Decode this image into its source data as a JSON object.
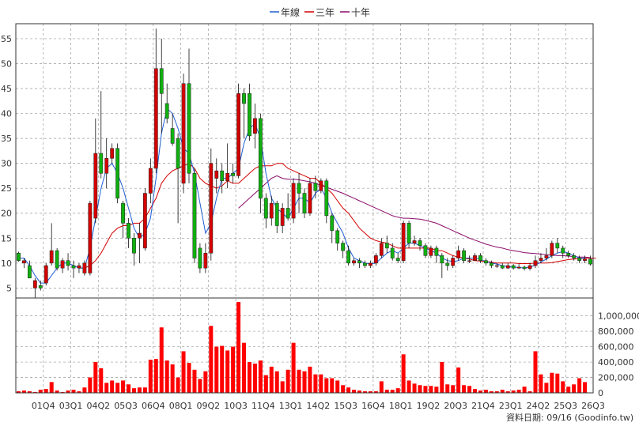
{
  "chart_data": {
    "type": "candlestick",
    "legend": [
      {
        "name": "年線",
        "color": "#1f5fd6"
      },
      {
        "name": "三年",
        "color": "#d40000"
      },
      {
        "name": "十年",
        "color": "#8a0a6a"
      }
    ],
    "price_axis": {
      "ticks": [
        5,
        10,
        15,
        20,
        25,
        30,
        35,
        40,
        45,
        50,
        55
      ],
      "ylim": [
        3,
        58
      ]
    },
    "volume_axis": {
      "ticks": [
        0,
        200000,
        400000,
        600000,
        800000,
        1000000
      ],
      "tick_labels": [
        "0",
        "200,000",
        "400,000",
        "600,000",
        "800,000",
        "1,000,000"
      ],
      "ylim": [
        0,
        1150000
      ]
    },
    "x_ticks": [
      "01Q4",
      "03Q1",
      "04Q2",
      "05Q3",
      "06Q4",
      "08Q1",
      "09Q2",
      "10Q3",
      "11Q4",
      "13Q1",
      "14Q2",
      "15Q3",
      "16Q4",
      "18Q1",
      "19Q2",
      "20Q3",
      "21Q4",
      "23Q1",
      "24Q2",
      "25Q3",
      "26Q3"
    ],
    "footer": "資料日期: 09/16  (Goodinfo.tw)",
    "colors": {
      "up": "#d40000",
      "down": "#10b010",
      "volume": "#ff0000",
      "grid": "#9a9a9a"
    },
    "candles": [
      [
        12,
        10.5,
        12.3,
        10.3
      ],
      [
        10,
        10.5,
        11.0,
        9.0
      ],
      [
        9.5,
        7.0,
        10.5,
        7.0
      ],
      [
        5,
        6.5,
        7.0,
        3.0
      ],
      [
        5.5,
        5.0,
        6.5,
        4.5
      ],
      [
        6,
        9.5,
        10.0,
        5.5
      ],
      [
        10,
        12.5,
        18.0,
        9.5
      ],
      [
        12.5,
        9.0,
        13.0,
        8.5
      ],
      [
        9,
        10.5,
        11.0,
        8.0
      ],
      [
        10.5,
        9.5,
        12.0,
        8.5
      ],
      [
        9.5,
        9.0,
        10.5,
        7.0
      ],
      [
        9,
        9.5,
        10.0,
        8.0
      ],
      [
        8,
        10.0,
        10.5,
        7.5
      ],
      [
        8,
        22.0,
        22.5,
        7.5
      ],
      [
        19,
        32.0,
        39.0,
        18.0
      ],
      [
        32,
        28.0,
        44.5,
        27.0
      ],
      [
        28,
        31.0,
        35.0,
        25.0
      ],
      [
        31,
        33.0,
        34.0,
        30.0
      ],
      [
        33,
        23.0,
        34.0,
        22.0
      ],
      [
        22,
        18.0,
        22.5,
        15.0
      ],
      [
        18,
        15.0,
        19.0,
        13.0
      ],
      [
        15,
        12.0,
        16.0,
        9.5
      ],
      [
        15,
        16.0,
        18.0,
        10.0
      ],
      [
        13,
        24.0,
        25.0,
        12.5
      ],
      [
        24,
        29.0,
        31.0,
        22.0
      ],
      [
        29,
        49.0,
        57.0,
        28.0
      ],
      [
        49,
        44.0,
        55.0,
        36.0
      ],
      [
        42,
        39.0,
        46.0,
        38.0
      ],
      [
        37,
        34.0,
        40.0,
        33.5
      ],
      [
        35,
        29.0,
        36.0,
        18.0
      ],
      [
        26,
        46.0,
        48.0,
        24.0
      ],
      [
        46,
        28.0,
        53.0,
        26.0
      ],
      [
        28,
        11.0,
        29.0,
        10.0
      ],
      [
        13,
        9.0,
        14.0,
        8.0
      ],
      [
        9,
        12.0,
        14.0,
        8.0
      ],
      [
        12,
        30.0,
        33.0,
        10.5
      ],
      [
        27,
        28.5,
        31.0,
        24.0
      ],
      [
        28.5,
        26.5,
        30.0,
        24.0
      ],
      [
        26.5,
        28.0,
        34.0,
        25.0
      ],
      [
        28,
        27.5,
        30.0,
        26.0
      ],
      [
        27.5,
        44.0,
        46.0,
        27.0
      ],
      [
        44,
        42.0,
        45.0,
        35.0
      ],
      [
        44,
        35.5,
        46.0,
        34.5
      ],
      [
        36,
        39.0,
        42.0,
        33.0
      ],
      [
        39,
        23.0,
        40.0,
        20.0
      ],
      [
        23,
        19.0,
        24.0,
        17.0
      ],
      [
        19,
        22.0,
        23.5,
        17.5
      ],
      [
        22,
        17.5,
        22.5,
        16.0
      ],
      [
        17.5,
        21.0,
        22.0,
        16.0
      ],
      [
        21,
        19.0,
        24.0,
        18.5
      ],
      [
        19,
        26.0,
        27.0,
        18.0
      ],
      [
        26,
        24.0,
        28.0,
        20.0
      ],
      [
        24,
        20.0,
        25.0,
        19.0
      ],
      [
        20,
        26.0,
        27.0,
        19.5
      ],
      [
        26,
        24.5,
        27.5,
        23.0
      ],
      [
        24.5,
        26.5,
        27.0,
        24.0
      ],
      [
        26.5,
        19.5,
        27.0,
        18.0
      ],
      [
        19.5,
        16.5,
        20.0,
        14.0
      ],
      [
        16.5,
        14.0,
        17.0,
        12.5
      ],
      [
        14,
        12.5,
        14.5,
        11.0
      ],
      [
        12.5,
        10.0,
        13.5,
        9.5
      ],
      [
        10,
        10.5,
        11.0,
        9.5
      ],
      [
        10.5,
        10.0,
        11.0,
        9.0
      ],
      [
        10,
        9.5,
        10.5,
        9.0
      ],
      [
        9.5,
        10.0,
        10.5,
        9.0
      ],
      [
        10,
        11.5,
        12.0,
        9.5
      ],
      [
        11.5,
        14.0,
        15.0,
        11.0
      ],
      [
        14,
        13.0,
        15.5,
        12.0
      ],
      [
        13,
        11.0,
        14.0,
        10.5
      ],
      [
        11,
        10.5,
        12.0,
        10.0
      ],
      [
        10.5,
        18.0,
        18.5,
        10.0
      ],
      [
        18,
        14.0,
        18.5,
        13.0
      ],
      [
        14,
        14.5,
        15.5,
        13.5
      ],
      [
        14.5,
        13.5,
        15.0,
        12.5
      ],
      [
        13.5,
        11.5,
        14.0,
        11.0
      ],
      [
        11.5,
        13.0,
        13.5,
        11.0
      ],
      [
        13,
        11.5,
        13.5,
        10.0
      ],
      [
        11.5,
        10.0,
        12.0,
        7.0
      ],
      [
        10,
        9.5,
        11.0,
        8.5
      ],
      [
        9.5,
        11.0,
        11.5,
        9.0
      ],
      [
        11,
        12.5,
        13.5,
        10.5
      ],
      [
        12.5,
        10.5,
        13.0,
        10.0
      ],
      [
        10.5,
        10.5,
        11.5,
        10.0
      ],
      [
        10.5,
        11.5,
        12.0,
        10.5
      ],
      [
        11.5,
        10.5,
        12.0,
        10.0
      ],
      [
        10.5,
        10.0,
        11.0,
        9.5
      ],
      [
        10,
        9.5,
        10.5,
        9.0
      ],
      [
        9.5,
        9.5,
        10.0,
        9.0
      ],
      [
        9.5,
        9.0,
        10.0,
        8.8
      ],
      [
        9,
        9.5,
        10.0,
        8.8
      ],
      [
        9.5,
        9.0,
        9.8,
        8.7
      ],
      [
        9,
        9.2,
        9.8,
        8.8
      ],
      [
        9.2,
        8.9,
        9.5,
        8.5
      ],
      [
        8.9,
        9.5,
        10.0,
        8.5
      ],
      [
        9.5,
        10.5,
        11.5,
        9.0
      ],
      [
        10.5,
        11.0,
        12.0,
        10.0
      ],
      [
        11,
        11.5,
        13.0,
        10.5
      ],
      [
        11.5,
        14.0,
        14.5,
        11.0
      ],
      [
        14,
        13.0,
        15.0,
        12.0
      ],
      [
        13,
        12.0,
        13.5,
        11.0
      ],
      [
        12,
        11.5,
        12.5,
        11.0
      ],
      [
        11.5,
        11.0,
        12.0,
        10.5
      ],
      [
        11,
        10.5,
        11.5,
        10.0
      ],
      [
        10.5,
        10.8,
        11.5,
        10.0
      ],
      [
        10.8,
        9.8,
        11.5,
        9.5
      ]
    ],
    "year_line": [
      11,
      11,
      9.5,
      7.5,
      6,
      6,
      7.5,
      9,
      10,
      10,
      9.5,
      9,
      9,
      13,
      19,
      25,
      29,
      30,
      28,
      25,
      21,
      17,
      15,
      16,
      19,
      27,
      36,
      41,
      40,
      37,
      33,
      32,
      28,
      22,
      16,
      18,
      23,
      27,
      27,
      28,
      29,
      34,
      37,
      38,
      35,
      28,
      23,
      21,
      20,
      19,
      21,
      23,
      23,
      22,
      24,
      25,
      23,
      20,
      18,
      16,
      13,
      11,
      10.5,
      10,
      9.8,
      10,
      11,
      12,
      12.5,
      12,
      13,
      14,
      14,
      13.5,
      13,
      12.5,
      12,
      11,
      10.5,
      10.3,
      10.5,
      11,
      11,
      11,
      10.8,
      10.3,
      10,
      9.8,
      9.5,
      9.3,
      9.2,
      9.1,
      9,
      9.2,
      9.6,
      10.2,
      10.8,
      11.5,
      12,
      12.3,
      12,
      11.5,
      11,
      11
    ],
    "three_year_line": [
      null,
      null,
      null,
      null,
      null,
      null,
      null,
      null,
      null,
      null,
      null,
      9,
      9,
      9.5,
      10.5,
      12,
      14,
      16,
      17,
      17.5,
      17.5,
      18,
      18,
      19,
      21,
      23,
      26,
      27.5,
      28.5,
      29,
      29.5,
      30,
      29,
      27,
      26,
      25.5,
      25,
      25.5,
      26.5,
      26,
      26,
      27,
      28,
      29,
      29.5,
      29.5,
      29.5,
      30,
      30,
      29,
      28.5,
      28,
      27.5,
      27,
      27,
      26,
      25,
      24,
      22.5,
      21,
      20,
      18.5,
      17,
      16,
      15,
      14.5,
      14.2,
      14,
      13.5,
      13,
      13,
      13,
      13,
      13,
      13,
      13,
      12.5,
      12.5,
      12,
      11.5,
      11.2,
      11,
      10.8,
      10.5,
      10.4,
      10.3,
      10.2,
      10,
      10,
      10,
      10,
      9.9,
      9.9,
      9.9,
      10,
      10,
      10,
      10.1,
      10.3,
      10.5,
      10.7,
      10.8,
      10.9,
      11,
      11,
      11
    ],
    "ten_year_line": [
      null,
      null,
      null,
      null,
      null,
      null,
      null,
      null,
      null,
      null,
      null,
      null,
      null,
      null,
      null,
      null,
      null,
      null,
      null,
      null,
      null,
      null,
      null,
      null,
      null,
      null,
      null,
      null,
      null,
      null,
      null,
      null,
      null,
      null,
      null,
      null,
      null,
      null,
      null,
      null,
      21,
      22,
      23,
      24,
      25,
      26,
      27,
      27.5,
      27,
      26.8,
      26.8,
      26.7,
      26.5,
      26.3,
      26,
      25.6,
      25.2,
      24.8,
      24.4,
      24,
      23.5,
      23,
      22.5,
      22,
      21.5,
      21,
      20.5,
      20,
      19.5,
      19.2,
      19,
      19,
      18.9,
      18.8,
      18.6,
      18.3,
      18,
      17.5,
      17,
      16.5,
      16,
      15.5,
      15,
      14.6,
      14.2,
      13.8,
      13.5,
      13.2,
      13,
      12.7,
      12.5,
      12.3,
      12.1,
      12,
      11.9,
      11.8,
      11.7,
      11.6,
      11.5,
      11.5,
      11.4,
      11.3,
      11.2,
      11.2,
      11.1
    ],
    "volumes": [
      20000,
      30000,
      20000,
      10000,
      40000,
      50000,
      140000,
      30000,
      10000,
      30000,
      40000,
      20000,
      70000,
      200000,
      400000,
      320000,
      130000,
      160000,
      130000,
      160000,
      110000,
      60000,
      70000,
      70000,
      430000,
      440000,
      850000,
      420000,
      370000,
      200000,
      540000,
      390000,
      300000,
      180000,
      280000,
      870000,
      600000,
      610000,
      550000,
      600000,
      1180000,
      650000,
      400000,
      380000,
      420000,
      230000,
      340000,
      280000,
      150000,
      300000,
      650000,
      300000,
      280000,
      340000,
      240000,
      240000,
      190000,
      190000,
      160000,
      100000,
      70000,
      40000,
      30000,
      20000,
      20000,
      20000,
      150000,
      40000,
      40000,
      60000,
      500000,
      160000,
      120000,
      100000,
      90000,
      90000,
      80000,
      400000,
      110000,
      100000,
      330000,
      100000,
      90000,
      50000,
      30000,
      40000,
      20000,
      20000,
      40000,
      20000,
      30000,
      40000,
      80000,
      20000,
      540000,
      240000,
      130000,
      260000,
      250000,
      150000,
      80000,
      110000,
      190000,
      140000
    ]
  }
}
